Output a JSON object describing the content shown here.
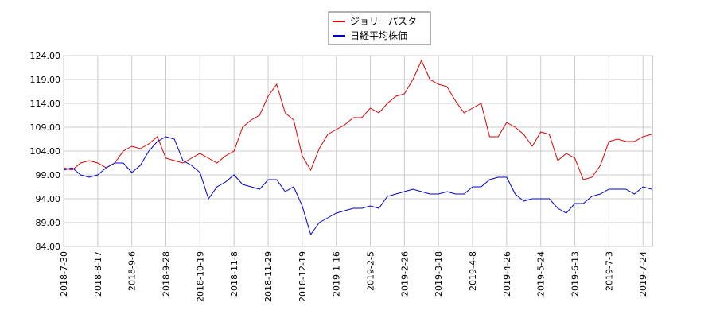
{
  "chart_data": {
    "type": "line",
    "categories": [
      "2018-7-30",
      null,
      null,
      null,
      "2018-8-17",
      null,
      null,
      null,
      "2018-9-6",
      null,
      null,
      null,
      "2018-9-28",
      null,
      null,
      null,
      "2018-10-19",
      null,
      null,
      null,
      "2018-11-8",
      null,
      null,
      null,
      "2018-11-29",
      null,
      null,
      null,
      "2018-12-19",
      null,
      null,
      null,
      "2019-1-16",
      null,
      null,
      null,
      "2019-2-5",
      null,
      null,
      null,
      "2019-2-26",
      null,
      null,
      null,
      "2019-3-18",
      null,
      null,
      null,
      "2019-4-8",
      null,
      null,
      null,
      "2019-4-26",
      null,
      null,
      null,
      "2019-5-24",
      null,
      null,
      null,
      "2019-6-13",
      null,
      null,
      null,
      "2019-7-3",
      null,
      null,
      null,
      "2019-7-24",
      null
    ],
    "series": [
      {
        "name": "ジョリーパスタ",
        "color": "#dd0000",
        "values": [
          100.5,
          100,
          101.5,
          102,
          101.5,
          100.5,
          101.5,
          104,
          105,
          104.5,
          105.5,
          107,
          102.5,
          102,
          101.5,
          102.5,
          103.5,
          102.5,
          101.5,
          103,
          104,
          109,
          110.5,
          111.5,
          115.5,
          118,
          112,
          110.5,
          103,
          100,
          104.5,
          107.5,
          108.5,
          109.5,
          111,
          111,
          113,
          112,
          114,
          115.5,
          116,
          119,
          123,
          119,
          118,
          117.5,
          114.5,
          112,
          113,
          114,
          107,
          107,
          110,
          109,
          107.5,
          105,
          108,
          107.5,
          102,
          103.5,
          102.5,
          98,
          98.5,
          101,
          106,
          106.5,
          106,
          106,
          107,
          107.5
        ]
      },
      {
        "name": "日経平均株価",
        "color": "#0000cc",
        "values": [
          100,
          100.5,
          99,
          98.5,
          99,
          100.5,
          101.5,
          101.5,
          99.5,
          101,
          104,
          106,
          107,
          106.5,
          102,
          101,
          99.5,
          94,
          96.5,
          97.5,
          99,
          97,
          96.5,
          96,
          98,
          98,
          95.5,
          96.5,
          92.5,
          86.5,
          89,
          90,
          91,
          91.5,
          92,
          92,
          92.5,
          92,
          94.5,
          95,
          95.5,
          96,
          95.5,
          95,
          95,
          95.5,
          95,
          95,
          96.5,
          96.5,
          98,
          98.5,
          98.5,
          95,
          93.5,
          94,
          94,
          94,
          92,
          91,
          93,
          93,
          94.5,
          95,
          96,
          96,
          96,
          95,
          96.5,
          96
        ]
      }
    ],
    "ylim": [
      84,
      124
    ],
    "yticks": [
      {
        "value": 84,
        "label": "84.00"
      },
      {
        "value": 89,
        "label": "89.00"
      },
      {
        "value": 94,
        "label": "94.00"
      },
      {
        "value": 99,
        "label": "99.00"
      },
      {
        "value": 104,
        "label": "104.00"
      },
      {
        "value": 109,
        "label": "109.00"
      },
      {
        "value": 114,
        "label": "114.00"
      },
      {
        "value": 119,
        "label": "119.00"
      },
      {
        "value": 124,
        "label": "124.00"
      }
    ],
    "grid": true,
    "legend": "top"
  }
}
